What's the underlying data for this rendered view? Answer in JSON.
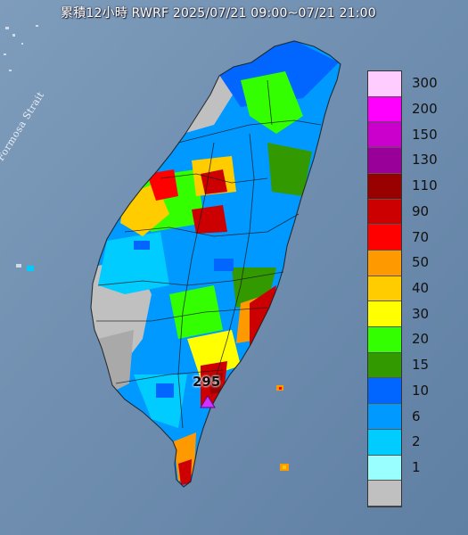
{
  "title": "累積12小時 RWRF 2025/07/21 09:00~07/21 21:00",
  "sea_label": "Formosa Strait",
  "max_value_label": "295",
  "legend": {
    "levels": [
      {
        "label": "300",
        "color": "#ffccff"
      },
      {
        "label": "200",
        "color": "#ff00ff"
      },
      {
        "label": "150",
        "color": "#cc00cc"
      },
      {
        "label": "130",
        "color": "#990099"
      },
      {
        "label": "110",
        "color": "#990000"
      },
      {
        "label": "90",
        "color": "#cc0000"
      },
      {
        "label": "70",
        "color": "#ff0000"
      },
      {
        "label": "50",
        "color": "#ff9900"
      },
      {
        "label": "40",
        "color": "#ffcc00"
      },
      {
        "label": "30",
        "color": "#ffff00"
      },
      {
        "label": "20",
        "color": "#33ff00"
      },
      {
        "label": "15",
        "color": "#339900"
      },
      {
        "label": "10",
        "color": "#0066ff"
      },
      {
        "label": "6",
        "color": "#0099ff"
      },
      {
        "label": "2",
        "color": "#00ccff"
      },
      {
        "label": "1",
        "color": "#99ffff"
      },
      {
        "label": "",
        "color": "#c0c0c0"
      }
    ]
  },
  "colors": {
    "sea": "#6f8fb0",
    "land_dry": "#c0c0c0",
    "max_marker": "#cc33ff"
  }
}
